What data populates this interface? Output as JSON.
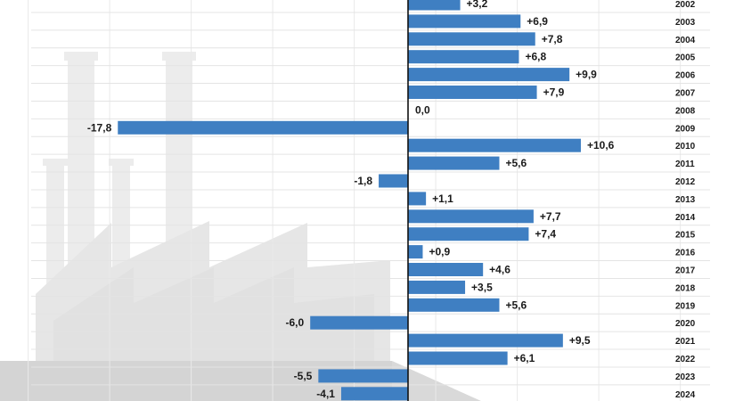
{
  "chart_data": {
    "type": "bar",
    "orientation": "horizontal",
    "categories": [
      "2002",
      "2003",
      "2004",
      "2005",
      "2006",
      "2007",
      "2008",
      "2009",
      "2010",
      "2011",
      "2012",
      "2013",
      "2014",
      "2015",
      "2016",
      "2017",
      "2018",
      "2019",
      "2020",
      "2021",
      "2022",
      "2023",
      "2024"
    ],
    "values": [
      3.2,
      6.9,
      7.8,
      6.8,
      9.9,
      7.9,
      0.0,
      -17.8,
      10.6,
      5.6,
      -1.8,
      1.1,
      7.7,
      7.4,
      0.9,
      4.6,
      3.5,
      5.6,
      -6.0,
      9.5,
      6.1,
      -5.5,
      -4.1
    ],
    "value_labels": [
      "+3,2",
      "+6,9",
      "+7,8",
      "+6,8",
      "+9,9",
      "+7,9",
      "0,0",
      "-17,8",
      "+10,6",
      "+5,6",
      "-1,8",
      "+1,1",
      "+7,7",
      "+7,4",
      "+0,9",
      "+4,6",
      "+3,5",
      "+5,6",
      "-6,0",
      "+9,5",
      "+6,1",
      "-5,5",
      "-4,1"
    ],
    "xlim": [
      -25,
      18
    ],
    "grid": true,
    "bar_color": "#3f7fc2",
    "background_motif": "factory-silhouette"
  }
}
